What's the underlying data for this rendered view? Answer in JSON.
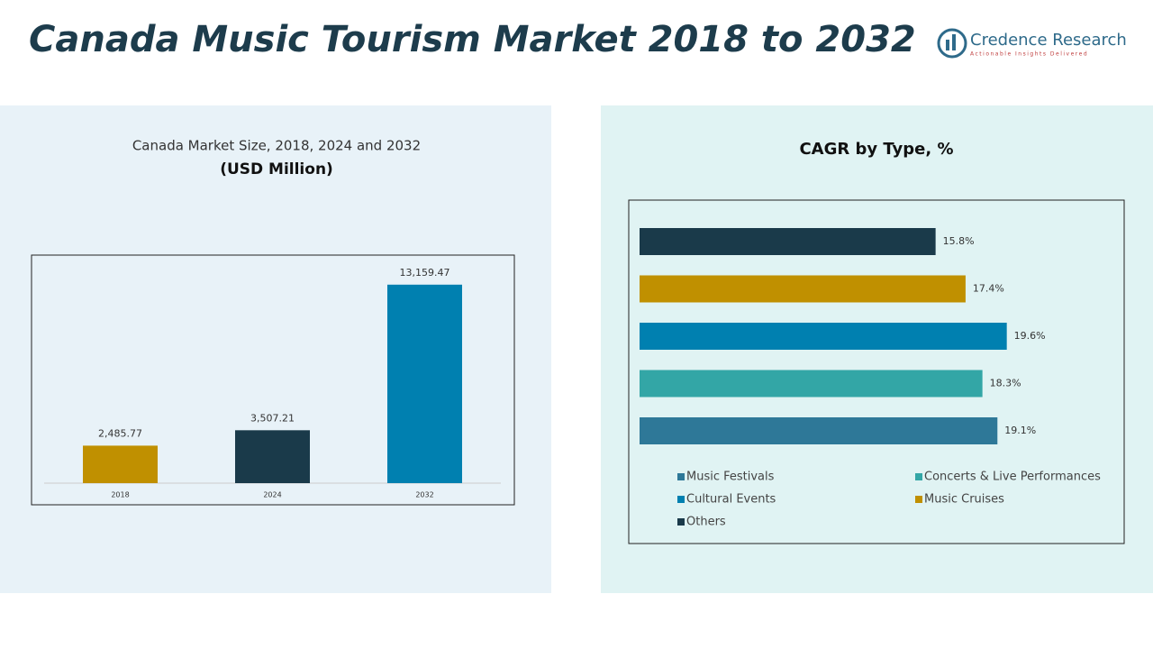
{
  "header": {
    "title": "Canada Music Tourism Market 2018 to 2032",
    "brand": "Credence Research",
    "tagline": "Actionable Insights Delivered"
  },
  "chart_data": [
    {
      "type": "bar",
      "title": "Canada Market Size, 2018, 2024 and 2032",
      "subtitle": "(USD Million)",
      "categories": [
        "2018",
        "2024",
        "2032"
      ],
      "values": [
        2485.77,
        3507.21,
        13159.47
      ],
      "value_labels": [
        "2,485.77",
        "3,507.21",
        "13,159.47"
      ],
      "colors": [
        "#c09000",
        "#1a3a4a",
        "#0080b0"
      ],
      "ylim": [
        0,
        15000
      ]
    },
    {
      "type": "hbar",
      "title": "CAGR by Type, %",
      "xlim": [
        0,
        25
      ],
      "series": [
        {
          "name": "Music Festivals",
          "color": "#2e7898",
          "values": [
            19.1
          ],
          "value_labels": [
            "19.1%"
          ]
        },
        {
          "name": "Concerts & Live Performances",
          "color": "#33a6a6",
          "values": [
            18.3
          ],
          "value_labels": [
            "18.3%"
          ]
        },
        {
          "name": "Cultural Events",
          "color": "#0080b0",
          "values": [
            19.6
          ],
          "value_labels": [
            "19.6%"
          ]
        },
        {
          "name": "Music Cruises",
          "color": "#c09000",
          "values": [
            17.4
          ],
          "value_labels": [
            "17.4%"
          ]
        },
        {
          "name": "Others",
          "color": "#1a3a4a",
          "values": [
            15.8
          ],
          "value_labels": [
            "15.8%"
          ]
        }
      ]
    }
  ]
}
